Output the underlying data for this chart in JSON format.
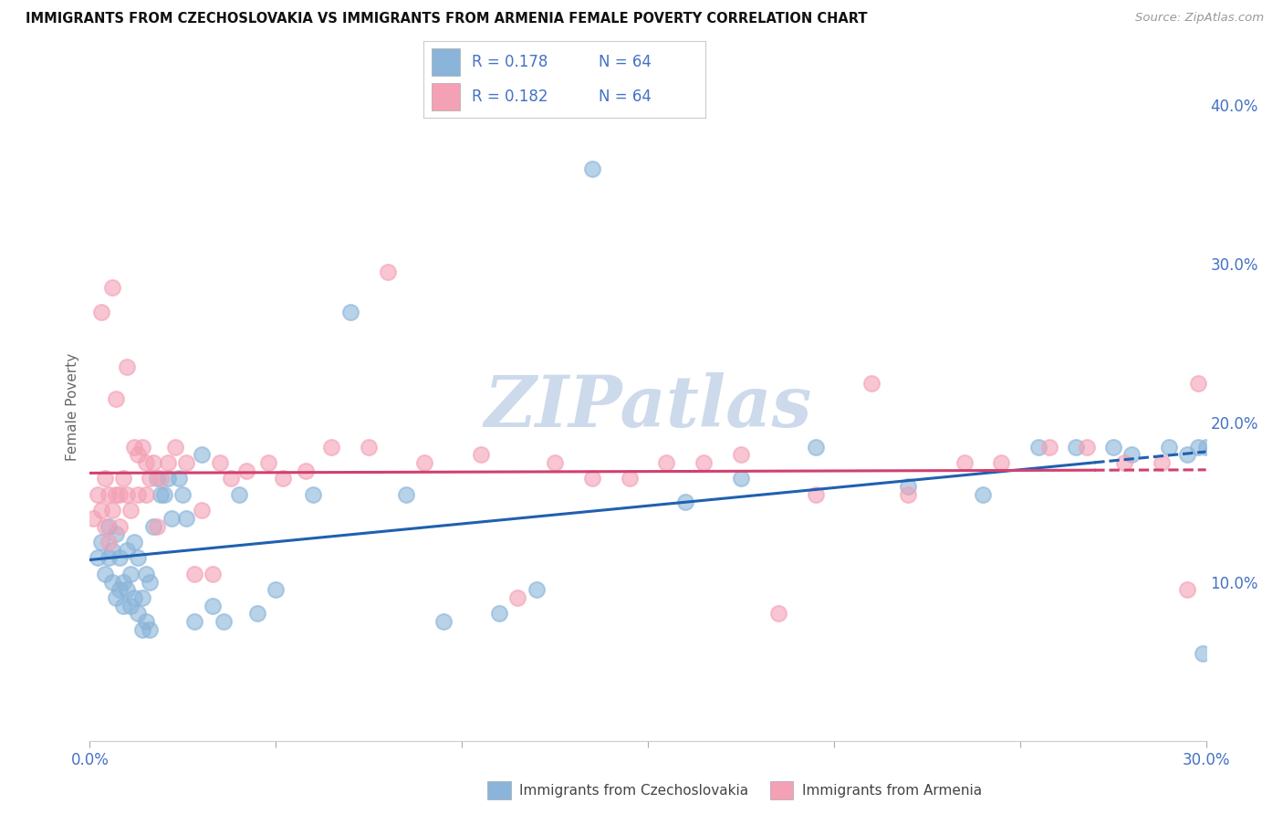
{
  "title": "IMMIGRANTS FROM CZECHOSLOVAKIA VS IMMIGRANTS FROM ARMENIA FEMALE POVERTY CORRELATION CHART",
  "source": "Source: ZipAtlas.com",
  "ylabel": "Female Poverty",
  "legend_label_blue": "Immigrants from Czechoslovakia",
  "legend_label_pink": "Immigrants from Armenia",
  "R_blue": "0.178",
  "N_blue": "64",
  "R_pink": "0.182",
  "N_pink": "64",
  "xlim": [
    0,
    0.3
  ],
  "ylim": [
    0,
    0.42
  ],
  "background_color": "#ffffff",
  "color_blue": "#8ab4d9",
  "color_pink": "#f4a0b5",
  "line_color_blue": "#2060b0",
  "line_color_pink": "#d04070",
  "watermark_color": "#ccdaeb",
  "title_color": "#222222",
  "axis_color": "#4472C4",
  "blue_scatter_x": [
    0.002,
    0.003,
    0.004,
    0.005,
    0.005,
    0.006,
    0.006,
    0.007,
    0.007,
    0.008,
    0.008,
    0.009,
    0.009,
    0.01,
    0.01,
    0.011,
    0.011,
    0.012,
    0.012,
    0.013,
    0.013,
    0.014,
    0.014,
    0.015,
    0.015,
    0.016,
    0.016,
    0.017,
    0.018,
    0.019,
    0.02,
    0.021,
    0.022,
    0.024,
    0.025,
    0.026,
    0.028,
    0.03,
    0.033,
    0.036,
    0.04,
    0.045,
    0.05,
    0.06,
    0.07,
    0.085,
    0.095,
    0.11,
    0.12,
    0.135,
    0.16,
    0.175,
    0.195,
    0.22,
    0.24,
    0.255,
    0.265,
    0.275,
    0.28,
    0.29,
    0.295,
    0.298,
    0.299,
    0.3
  ],
  "blue_scatter_y": [
    0.115,
    0.125,
    0.105,
    0.135,
    0.115,
    0.12,
    0.1,
    0.13,
    0.09,
    0.115,
    0.095,
    0.1,
    0.085,
    0.12,
    0.095,
    0.105,
    0.085,
    0.125,
    0.09,
    0.115,
    0.08,
    0.09,
    0.07,
    0.105,
    0.075,
    0.1,
    0.07,
    0.135,
    0.165,
    0.155,
    0.155,
    0.165,
    0.14,
    0.165,
    0.155,
    0.14,
    0.075,
    0.18,
    0.085,
    0.075,
    0.155,
    0.08,
    0.095,
    0.155,
    0.27,
    0.155,
    0.075,
    0.08,
    0.095,
    0.36,
    0.15,
    0.165,
    0.185,
    0.16,
    0.155,
    0.185,
    0.185,
    0.185,
    0.18,
    0.185,
    0.18,
    0.185,
    0.055,
    0.185
  ],
  "pink_scatter_x": [
    0.001,
    0.002,
    0.003,
    0.003,
    0.004,
    0.004,
    0.005,
    0.005,
    0.006,
    0.006,
    0.007,
    0.007,
    0.008,
    0.008,
    0.009,
    0.01,
    0.01,
    0.011,
    0.012,
    0.013,
    0.013,
    0.014,
    0.015,
    0.015,
    0.016,
    0.017,
    0.018,
    0.019,
    0.021,
    0.023,
    0.026,
    0.028,
    0.03,
    0.033,
    0.035,
    0.038,
    0.042,
    0.048,
    0.052,
    0.058,
    0.065,
    0.075,
    0.08,
    0.09,
    0.105,
    0.115,
    0.125,
    0.135,
    0.145,
    0.155,
    0.165,
    0.175,
    0.185,
    0.195,
    0.21,
    0.22,
    0.235,
    0.245,
    0.258,
    0.268,
    0.278,
    0.288,
    0.295,
    0.298
  ],
  "pink_scatter_y": [
    0.14,
    0.155,
    0.145,
    0.27,
    0.135,
    0.165,
    0.155,
    0.125,
    0.145,
    0.285,
    0.215,
    0.155,
    0.155,
    0.135,
    0.165,
    0.235,
    0.155,
    0.145,
    0.185,
    0.18,
    0.155,
    0.185,
    0.155,
    0.175,
    0.165,
    0.175,
    0.135,
    0.165,
    0.175,
    0.185,
    0.175,
    0.105,
    0.145,
    0.105,
    0.175,
    0.165,
    0.17,
    0.175,
    0.165,
    0.17,
    0.185,
    0.185,
    0.295,
    0.175,
    0.18,
    0.09,
    0.175,
    0.165,
    0.165,
    0.175,
    0.175,
    0.18,
    0.08,
    0.155,
    0.225,
    0.155,
    0.175,
    0.175,
    0.185,
    0.185,
    0.175,
    0.175,
    0.095,
    0.225
  ]
}
